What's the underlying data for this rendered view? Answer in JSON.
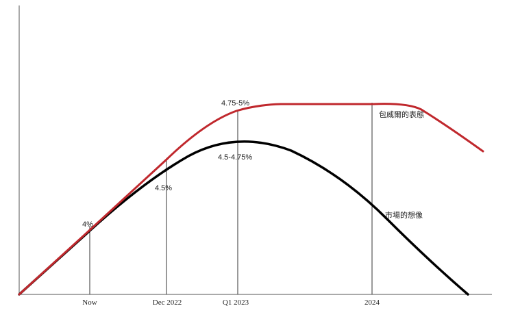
{
  "chart_data": {
    "type": "line",
    "title": "",
    "xlabel": "",
    "ylabel": "",
    "grid": false,
    "x_ticks": [
      "Now",
      "Dec 2022",
      "Q1 2023",
      "2024"
    ],
    "series": [
      {
        "name": "包威爾的表態",
        "color": "#c0282d",
        "shape": "rise-plateau-fall"
      },
      {
        "name": "市場的想像",
        "color": "#000000",
        "shape": "rise-peak-fall"
      }
    ],
    "annotations": [
      {
        "text": "4%",
        "at": "Now"
      },
      {
        "text": "4.5%",
        "at": "Dec 2022"
      },
      {
        "text": "4.75-5%",
        "at": "Q1 2023"
      },
      {
        "text": "4.5-4.75%",
        "at": "Q1 2023"
      }
    ]
  }
}
